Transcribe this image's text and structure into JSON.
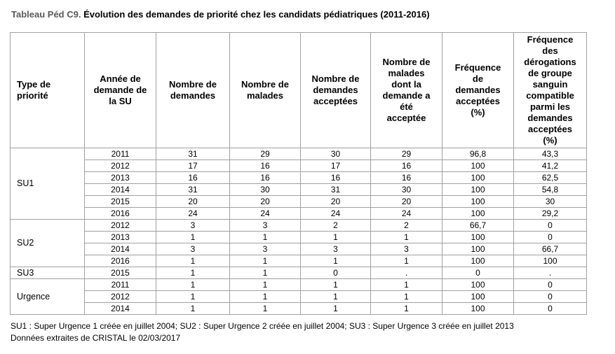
{
  "title": {
    "label": "Tableau Péd C9.",
    "text": " Évolution des demandes de priorité chez les candidats pédiatriques (2011-2016)"
  },
  "table": {
    "columns": [
      "Type de\npriorité",
      "Année de\ndemande de\nla SU",
      "Nombre de\ndemandes",
      "Nombre de\nmalades",
      "Nombre de\ndemandes\nacceptées",
      "Nombre de\nmalades\ndont la\ndemande a\nété\nacceptée",
      "Fréquence\nde\ndemandes\nacceptées\n(%)",
      "Fréquence\ndes\ndérogations\nde groupe\nsanguin\ncompatible\nparmi les\ndemandes\nacceptées\n(%)"
    ],
    "groups": [
      {
        "type": "SU1",
        "rows": [
          [
            "2011",
            "31",
            "29",
            "30",
            "29",
            "96,8",
            "43,3"
          ],
          [
            "2012",
            "17",
            "16",
            "17",
            "16",
            "100",
            "41,2"
          ],
          [
            "2013",
            "16",
            "16",
            "16",
            "16",
            "100",
            "62,5"
          ],
          [
            "2014",
            "31",
            "30",
            "31",
            "30",
            "100",
            "54,8"
          ],
          [
            "2015",
            "20",
            "20",
            "20",
            "20",
            "100",
            "30"
          ],
          [
            "2016",
            "24",
            "24",
            "24",
            "24",
            "100",
            "29,2"
          ]
        ]
      },
      {
        "type": "SU2",
        "rows": [
          [
            "2012",
            "3",
            "3",
            "2",
            "2",
            "66,7",
            "0"
          ],
          [
            "2013",
            "1",
            "1",
            "1",
            "1",
            "100",
            "0"
          ],
          [
            "2014",
            "3",
            "3",
            "3",
            "3",
            "100",
            "66,7"
          ],
          [
            "2016",
            "1",
            "1",
            "1",
            "1",
            "100",
            "100"
          ]
        ]
      },
      {
        "type": "SU3",
        "rows": [
          [
            "2015",
            "1",
            "1",
            "0",
            ".",
            "0",
            "."
          ]
        ]
      },
      {
        "type": "Urgence",
        "rows": [
          [
            "2011",
            "1",
            "1",
            "1",
            "1",
            "100",
            "0"
          ],
          [
            "2012",
            "1",
            "1",
            "1",
            "1",
            "100",
            "0"
          ],
          [
            "2014",
            "1",
            "1",
            "1",
            "1",
            "100",
            "0"
          ]
        ]
      }
    ]
  },
  "footnotes": [
    "SU1 : Super Urgence 1 créée en juillet 2004; SU2 : Super Urgence 2 créée en juillet 2004; SU3 : Super Urgence 3 créée en juillet 2013",
    "Données extraites de CRISTAL le 02/03/2017"
  ],
  "colors": {
    "title_label_gray": "#595959",
    "title_text_black": "#000000",
    "table_border_gray": "#a0a0a0",
    "background": "#ffffff"
  }
}
